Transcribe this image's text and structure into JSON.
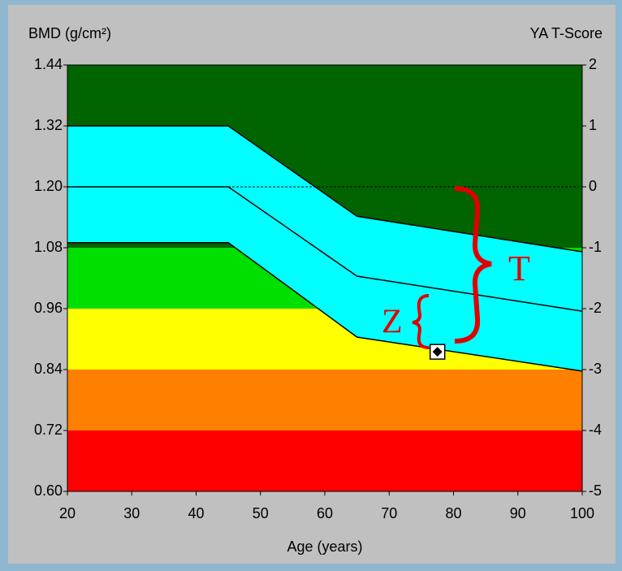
{
  "chart_data": {
    "type": "bmd",
    "y_label": "BMD (g/cm²)",
    "y2_label": "YA T-Score",
    "x_label": "Age (years)",
    "xlim": [
      20,
      100
    ],
    "xticks": [
      20,
      30,
      40,
      50,
      60,
      70,
      80,
      90,
      100
    ],
    "ylim": [
      0.6,
      1.44
    ],
    "yticks": [
      {
        "value": 0.6,
        "label": "0.60"
      },
      0.72,
      0.84,
      0.96,
      1.08,
      {
        "value": 1.2,
        "label": "1.20"
      },
      1.32,
      1.44
    ],
    "y2lim": [
      -5,
      2
    ],
    "y2ticks": [
      -5,
      -4,
      -3,
      -2,
      -1,
      0,
      1,
      2
    ],
    "plot_color": "#006400",
    "zones": [
      {
        "from": 0.96,
        "to": 1.08,
        "color": "#00e000"
      },
      {
        "from": 0.84,
        "to": 0.96,
        "color": "#ffff00"
      },
      {
        "from": 0.72,
        "to": 0.84,
        "color": "#ff8000"
      },
      {
        "from": 0.6,
        "to": 0.72,
        "color": "#ff0000"
      }
    ],
    "x": [
      20,
      45,
      65,
      100
    ],
    "band_color": "#00ffff",
    "series": [
      {
        "color": "#000000",
        "values": [
          1.32,
          1.32,
          1.142,
          1.072
        ]
      },
      {
        "color": "#000000",
        "values": [
          1.2,
          1.2,
          1.024,
          0.955
        ]
      },
      {
        "color": "#000000",
        "values": [
          1.09,
          1.09,
          0.904,
          0.837
        ]
      }
    ],
    "reference_line": {
      "y": 1.2,
      "x": [
        45,
        100
      ]
    },
    "point": {
      "x": 77.5,
      "y": 0.875
    },
    "annotations": [
      "T",
      "Z"
    ]
  }
}
